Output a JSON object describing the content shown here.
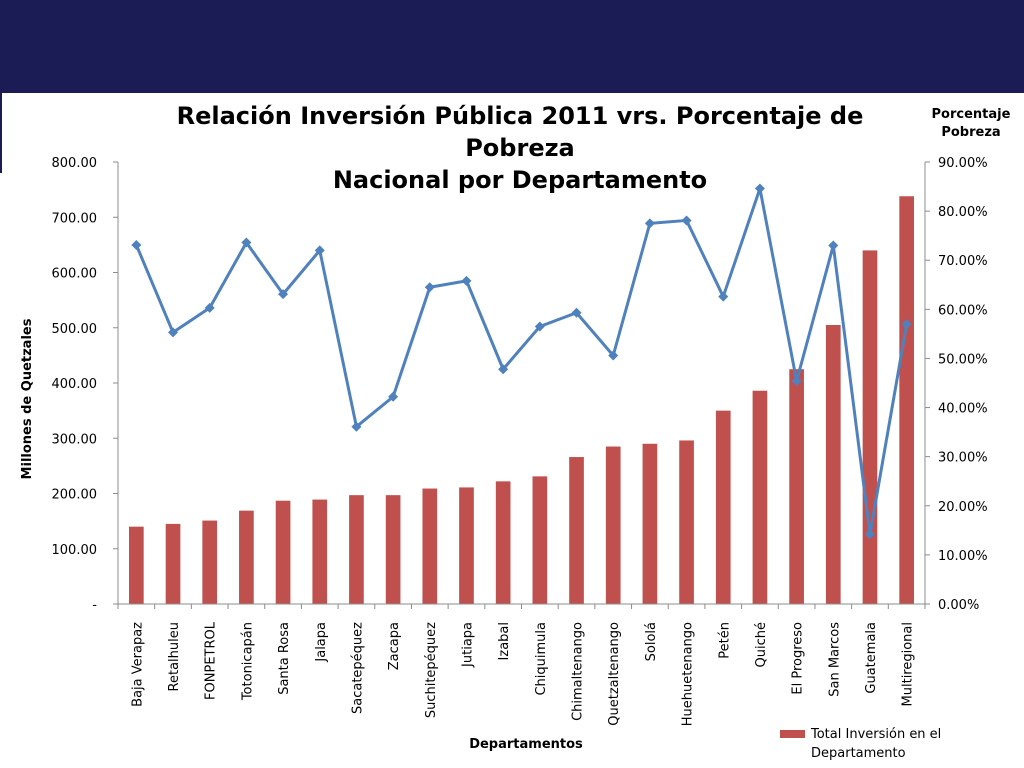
{
  "chart_data": {
    "type": "bar",
    "title_lines": [
      "Relación Inversión Pública 2011 vrs. Porcentaje de",
      "Pobreza",
      "Nacional por Departamento"
    ],
    "xlabel": "Departamentos",
    "ylabel": "Millones de Quetzales",
    "y2label_lines": [
      "Porcentaje",
      "Pobreza"
    ],
    "ylim": [
      0,
      800
    ],
    "y2lim": [
      0,
      90
    ],
    "y_ticks": [
      "-",
      "100.00",
      "200.00",
      "300.00",
      "400.00",
      "500.00",
      "600.00",
      "700.00",
      "800.00"
    ],
    "y2_ticks": [
      "0.00%",
      "10.00%",
      "20.00%",
      "30.00%",
      "40.00%",
      "50.00%",
      "60.00%",
      "70.00%",
      "80.00%",
      "90.00%"
    ],
    "categories": [
      "Baja Verapaz",
      "Retalhuleu",
      "FONPETROL",
      "Totonicapán",
      "Santa Rosa",
      "Jalapa",
      "Sacatepéquez",
      "Zacapa",
      "Suchitepéquez",
      "Jutiapa",
      "Izabal",
      "Chiquimula",
      "Chimaltenango",
      "Quetzaltenango",
      "Sololá",
      "Huehuetenango",
      "Petén",
      "Quiché",
      "El Progreso",
      "San Marcos",
      "Guatemala",
      "Multiregional"
    ],
    "series": [
      {
        "name": "Total Inversión en el Departamento",
        "axis": "left",
        "kind": "bar",
        "color": "#c0504d",
        "values": [
          140,
          145,
          151,
          169,
          187,
          189,
          197,
          197,
          209,
          211,
          222,
          231,
          266,
          285,
          290,
          296,
          350,
          386,
          425,
          505,
          640,
          738
        ]
      },
      {
        "axis": "right",
        "kind": "line",
        "color": "#4f81bd",
        "values": [
          73.1,
          55.3,
          60.3,
          73.6,
          63.1,
          72.0,
          36.1,
          42.2,
          64.5,
          65.8,
          47.8,
          56.5,
          59.3,
          50.6,
          77.5,
          78.1,
          62.6,
          84.6,
          45.4,
          73.0,
          14.2,
          57.0
        ]
      }
    ],
    "legend": {
      "position": "bottom-right",
      "lines": [
        "Total Inversión en el",
        "Departamento"
      ]
    },
    "grid": false
  }
}
